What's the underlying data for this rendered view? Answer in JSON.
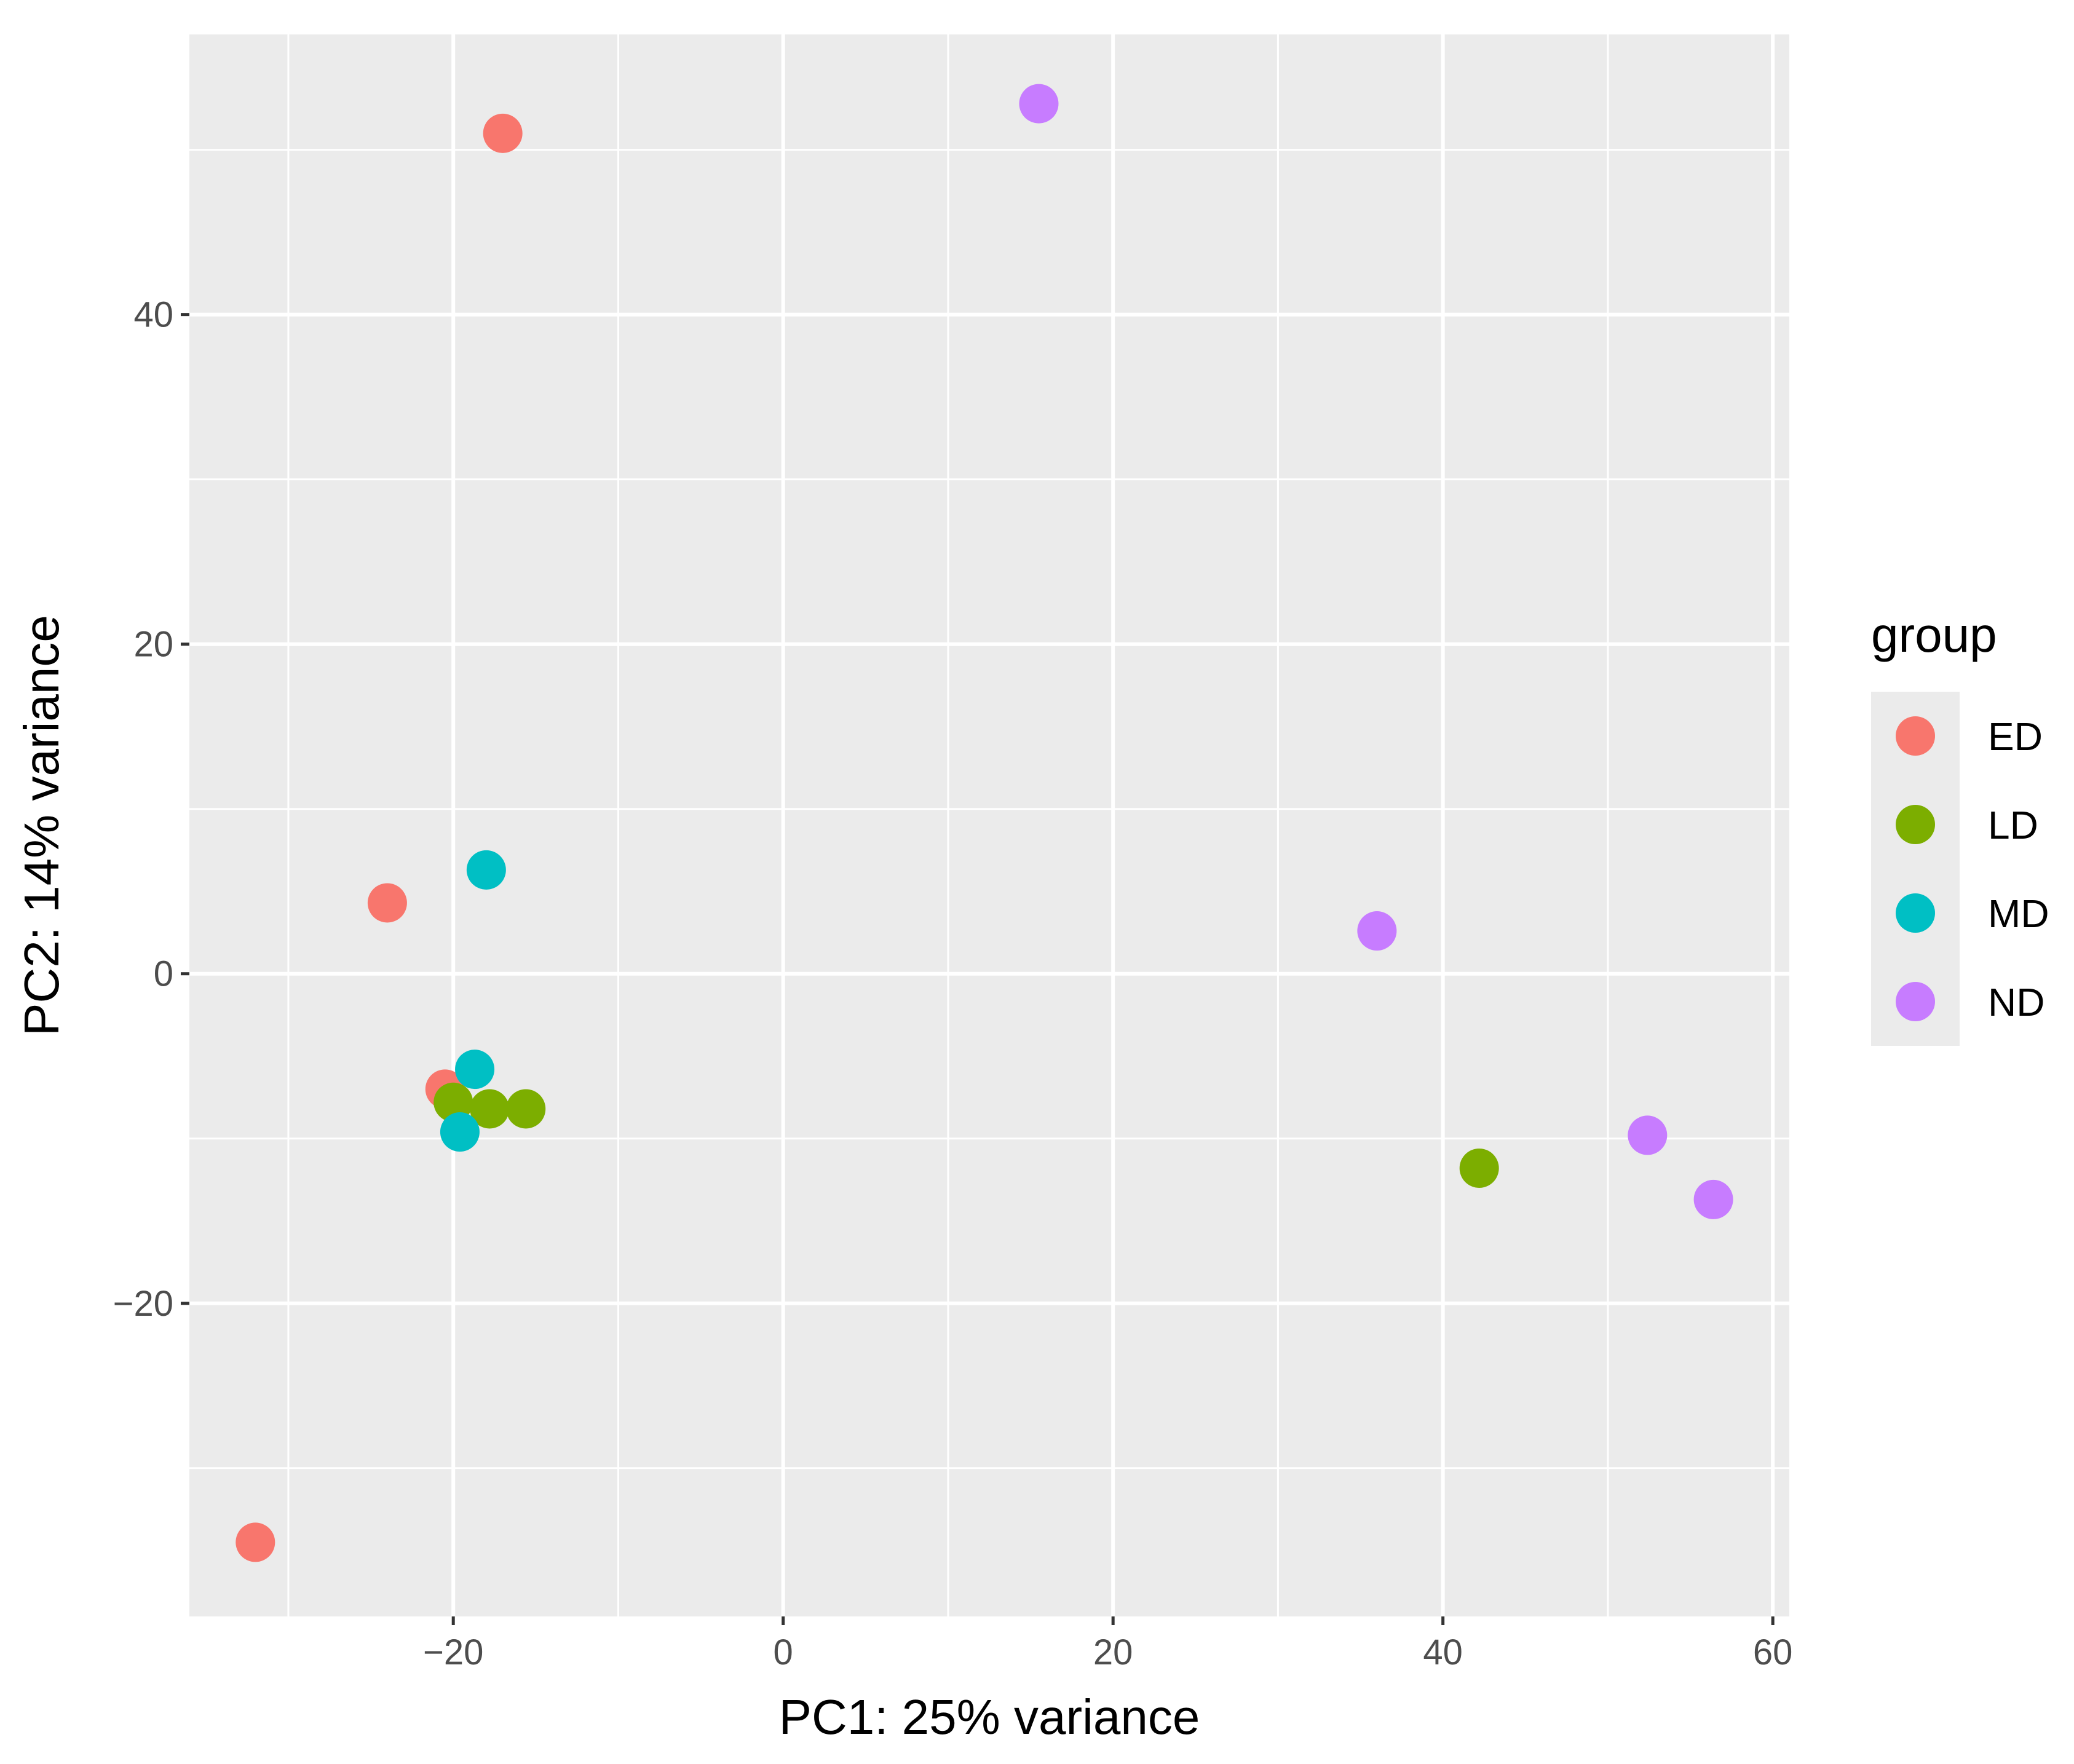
{
  "chart_data": {
    "type": "scatter",
    "title": "",
    "xlabel": "PC1: 25% variance",
    "ylabel": "PC2: 14% variance",
    "xlim": [
      -36,
      61
    ],
    "ylim": [
      -39,
      57
    ],
    "x_ticks": [
      -20,
      0,
      20,
      40,
      60
    ],
    "y_ticks": [
      -20,
      0,
      20,
      40
    ],
    "x_tick_labels": [
      "−20",
      "0",
      "20",
      "40",
      "60"
    ],
    "y_tick_labels": [
      "−20",
      "0",
      "20",
      "40"
    ],
    "grid": true,
    "background": "#ebebeb",
    "legend": {
      "title": "group",
      "position": "right"
    },
    "series": [
      {
        "name": "ED",
        "color": "#F8766D",
        "points": [
          {
            "x": -17,
            "y": 51
          },
          {
            "x": -24,
            "y": 4.3
          },
          {
            "x": -20.5,
            "y": -7
          },
          {
            "x": -32,
            "y": -34.5
          }
        ]
      },
      {
        "name": "LD",
        "color": "#7CAE00",
        "points": [
          {
            "x": -20,
            "y": -7.8
          },
          {
            "x": -17.8,
            "y": -8.2
          },
          {
            "x": -15.6,
            "y": -8.2
          },
          {
            "x": 42.2,
            "y": -11.8
          }
        ]
      },
      {
        "name": "MD",
        "color": "#00BFC4",
        "points": [
          {
            "x": -18,
            "y": 6.3
          },
          {
            "x": -18.7,
            "y": -5.8
          },
          {
            "x": -19.6,
            "y": -9.6
          }
        ]
      },
      {
        "name": "ND",
        "color": "#C77CFF",
        "points": [
          {
            "x": 15.5,
            "y": 52.8
          },
          {
            "x": 36,
            "y": 2.6
          },
          {
            "x": 52.4,
            "y": -9.8
          },
          {
            "x": 56.4,
            "y": -13.7
          }
        ]
      }
    ]
  }
}
